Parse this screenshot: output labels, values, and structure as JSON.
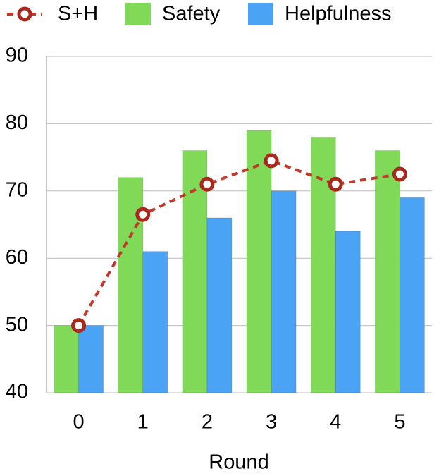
{
  "chart_data": {
    "type": "bar",
    "x_label": "Round",
    "categories": [
      "0",
      "1",
      "2",
      "3",
      "4",
      "5"
    ],
    "series": [
      {
        "name": "S+H",
        "type": "line",
        "color": "#c0392b",
        "values": [
          50,
          66.5,
          71,
          74.5,
          71,
          72.5
        ]
      },
      {
        "name": "Safety",
        "type": "bar",
        "color": "#80d957",
        "values": [
          50,
          72,
          76,
          79,
          78,
          76
        ]
      },
      {
        "name": "Helpfulness",
        "type": "bar",
        "color": "#4aa3f5",
        "values": [
          50,
          61,
          66,
          70,
          64,
          69
        ]
      }
    ],
    "ylim": [
      40,
      90
    ],
    "yticks": [
      40,
      50,
      60,
      70,
      80,
      90
    ],
    "grid": true
  }
}
